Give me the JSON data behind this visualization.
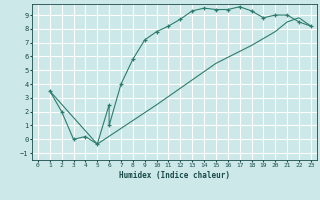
{
  "xlabel": "Humidex (Indice chaleur)",
  "bg_color": "#cce8e8",
  "grid_color": "#ffffff",
  "line_color": "#2d7d6e",
  "xlim": [
    -0.5,
    23.5
  ],
  "ylim": [
    -1.5,
    9.8
  ],
  "xticks": [
    0,
    1,
    2,
    3,
    4,
    5,
    6,
    7,
    8,
    9,
    10,
    11,
    12,
    13,
    14,
    15,
    16,
    17,
    18,
    19,
    20,
    21,
    22,
    23
  ],
  "yticks": [
    -1,
    0,
    1,
    2,
    3,
    4,
    5,
    6,
    7,
    8,
    9
  ],
  "line1_x": [
    1,
    2,
    3,
    4,
    5,
    6,
    6,
    7,
    8,
    9,
    10,
    11,
    12,
    13,
    14,
    15,
    16,
    17,
    18,
    19,
    20,
    21,
    22,
    23
  ],
  "line1_y": [
    3.5,
    2.0,
    0.0,
    0.2,
    -0.35,
    2.5,
    1.0,
    4.0,
    5.8,
    7.2,
    7.8,
    8.2,
    8.7,
    9.3,
    9.5,
    9.4,
    9.4,
    9.6,
    9.3,
    8.8,
    9.0,
    9.0,
    8.5,
    8.2
  ],
  "line2_x": [
    1,
    5,
    10,
    15,
    18,
    20,
    21,
    22,
    23
  ],
  "line2_y": [
    3.5,
    -0.35,
    2.5,
    5.5,
    6.8,
    7.8,
    8.5,
    8.8,
    8.2
  ]
}
